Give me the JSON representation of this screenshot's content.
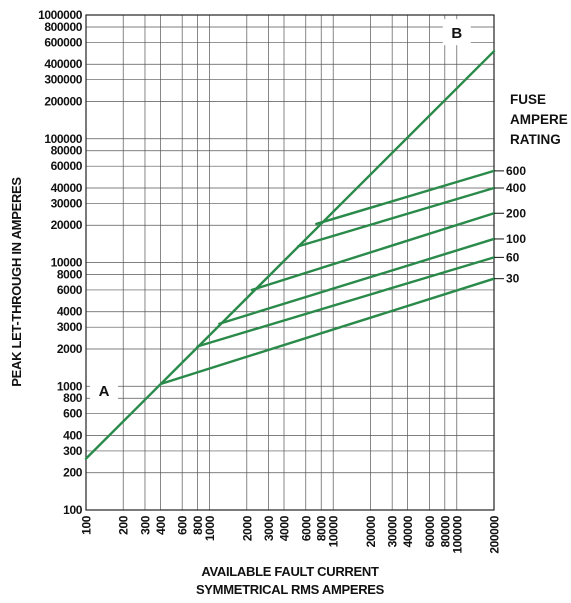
{
  "chart_data": {
    "type": "line",
    "title": "",
    "xlabel_line1": "AVAILABLE FAULT CURRENT",
    "xlabel_line2": "SYMMETRICAL RMS AMPERES",
    "ylabel": "PEAK LET-THROUGH IN AMPERES",
    "x_scale": "log",
    "y_scale": "log",
    "xlim": [
      100,
      200000
    ],
    "ylim": [
      100,
      1000000
    ],
    "grid": true,
    "x_tick_labels": [
      "100",
      "200",
      "300",
      "400",
      "600",
      "800",
      "1000",
      "2000",
      "3000",
      "4000",
      "6000",
      "8000",
      "10000",
      "20000",
      "30000",
      "40000",
      "60000",
      "80000",
      "100000",
      "200000"
    ],
    "y_tick_labels": [
      "100",
      "200",
      "300",
      "400",
      "600",
      "800",
      "1000",
      "2000",
      "3000",
      "4000",
      "6000",
      "8000",
      "10000",
      "20000",
      "30000",
      "40000",
      "60000",
      "80000",
      "100000",
      "200000",
      "300000",
      "400000",
      "600000",
      "800000",
      "1000000"
    ],
    "legend_title": [
      "FUSE",
      "AMPERE",
      "RATING"
    ],
    "line_color": "#2a8a4a",
    "annotations": [
      {
        "text": "A",
        "x": 140,
        "y": 900
      },
      {
        "text": "B",
        "x": 100000,
        "y": 700000
      }
    ],
    "series": [
      {
        "name": "A-B",
        "x": [
          100,
          200000
        ],
        "y": [
          260,
          510000
        ]
      },
      {
        "name": "600",
        "x": [
          7300,
          200000
        ],
        "y": [
          20500,
          55000
        ]
      },
      {
        "name": "400",
        "x": [
          5200,
          200000
        ],
        "y": [
          13500,
          40000
        ]
      },
      {
        "name": "200",
        "x": [
          2200,
          200000
        ],
        "y": [
          6000,
          25000
        ]
      },
      {
        "name": "100",
        "x": [
          1200,
          200000
        ],
        "y": [
          3200,
          15500
        ]
      },
      {
        "name": "60",
        "x": [
          800,
          200000
        ],
        "y": [
          2100,
          11000
        ]
      },
      {
        "name": "30",
        "x": [
          410,
          200000
        ],
        "y": [
          1050,
          7400
        ]
      }
    ]
  }
}
